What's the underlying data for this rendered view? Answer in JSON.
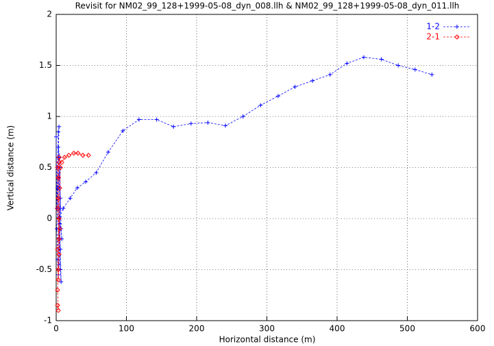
{
  "chart_data": {
    "type": "line",
    "title": "Revisit for NM02_99_128+1999-05-08_dyn_008.llh & NM02_99_128+1999-05-08_dyn_011.llh",
    "x_label": "Horizontal distance (m)",
    "y_label": "Vertical distance (m)",
    "xlim": [
      0,
      600
    ],
    "xticks": [
      0,
      100,
      200,
      300,
      400,
      500,
      600
    ],
    "ylim": [
      -1,
      2
    ],
    "yticks": [
      -1,
      -0.5,
      0,
      0.5,
      1,
      1.5,
      2
    ],
    "grid": true,
    "legend": "top-right",
    "series": [
      {
        "name": "1-2",
        "color": "#0000ff",
        "marker": "plus",
        "x": [
          0,
          1,
          2,
          3,
          4,
          3,
          2,
          1,
          2,
          3,
          4,
          5,
          4,
          3,
          5,
          6,
          5,
          6,
          7,
          6,
          5,
          4,
          3,
          5,
          7,
          8,
          5,
          10,
          20,
          30,
          42,
          57,
          74,
          95,
          118,
          143,
          167,
          192,
          216,
          241,
          266,
          291,
          316,
          340,
          365,
          390,
          414,
          438,
          463,
          487,
          511,
          535
        ],
        "values": [
          0.8,
          0.1,
          0.5,
          0.85,
          0.9,
          0.6,
          0.3,
          -0.1,
          -0.4,
          -0.55,
          -0.3,
          0.1,
          0.4,
          0.7,
          0.6,
          0.2,
          -0.2,
          -0.5,
          -0.62,
          -0.3,
          -0.05,
          -0.45,
          0.3,
          0.5,
          -0.1,
          -0.2,
          0.02,
          0.1,
          0.2,
          0.3,
          0.36,
          0.45,
          0.65,
          0.86,
          0.97,
          0.97,
          0.9,
          0.93,
          0.94,
          0.91,
          1.0,
          1.11,
          1.2,
          1.29,
          1.35,
          1.41,
          1.52,
          1.58,
          1.56,
          1.5,
          1.46,
          1.41
        ]
      },
      {
        "name": "2-1",
        "color": "#ff0000",
        "marker": "diamond",
        "x": [
          2,
          3,
          2,
          3,
          4,
          2,
          3,
          4,
          2,
          3,
          5,
          4,
          3,
          2,
          4,
          5,
          6,
          4,
          8,
          12,
          18,
          25,
          31,
          38,
          46
        ],
        "values": [
          -0.85,
          -0.9,
          -0.7,
          -0.5,
          -0.2,
          0.1,
          0.4,
          0.55,
          0.5,
          0.2,
          -0.1,
          -0.35,
          -0.6,
          -0.3,
          0.0,
          0.3,
          0.5,
          0.6,
          0.55,
          0.6,
          0.62,
          0.64,
          0.64,
          0.62,
          0.62
        ]
      }
    ]
  }
}
